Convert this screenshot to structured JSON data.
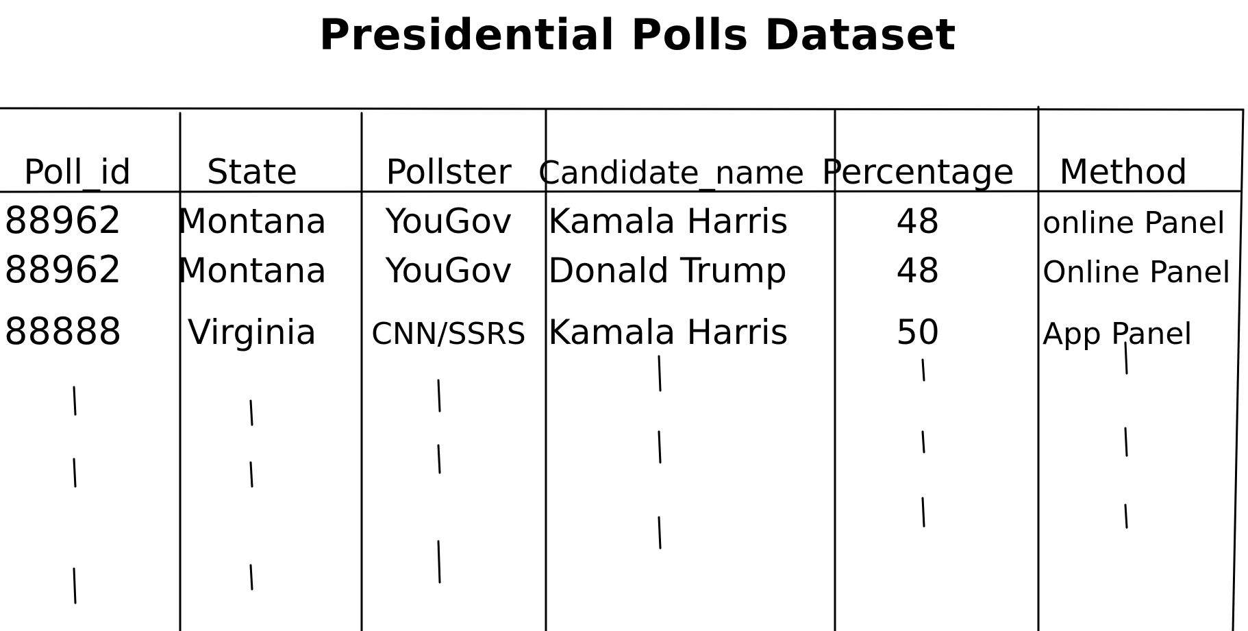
{
  "title": "Presidential Polls Dataset",
  "table": {
    "columns": [
      "Poll_id",
      "State",
      "Pollster",
      "Candidate_name",
      "Percentage",
      "Method"
    ],
    "rows": [
      [
        "88962",
        "Montana",
        "YouGov",
        "Kamala Harris",
        "48",
        "online Panel"
      ],
      [
        "88962",
        "Montana",
        "YouGov",
        "Donald Trump",
        "48",
        "Online Panel"
      ],
      [
        "88888",
        "Virginia",
        "CNN/SSRS",
        "Kamala Harris",
        "50",
        "App Panel"
      ]
    ],
    "continuation_mark": "|"
  },
  "colors": {
    "ink": "#000000",
    "paper": "#ffffff"
  }
}
